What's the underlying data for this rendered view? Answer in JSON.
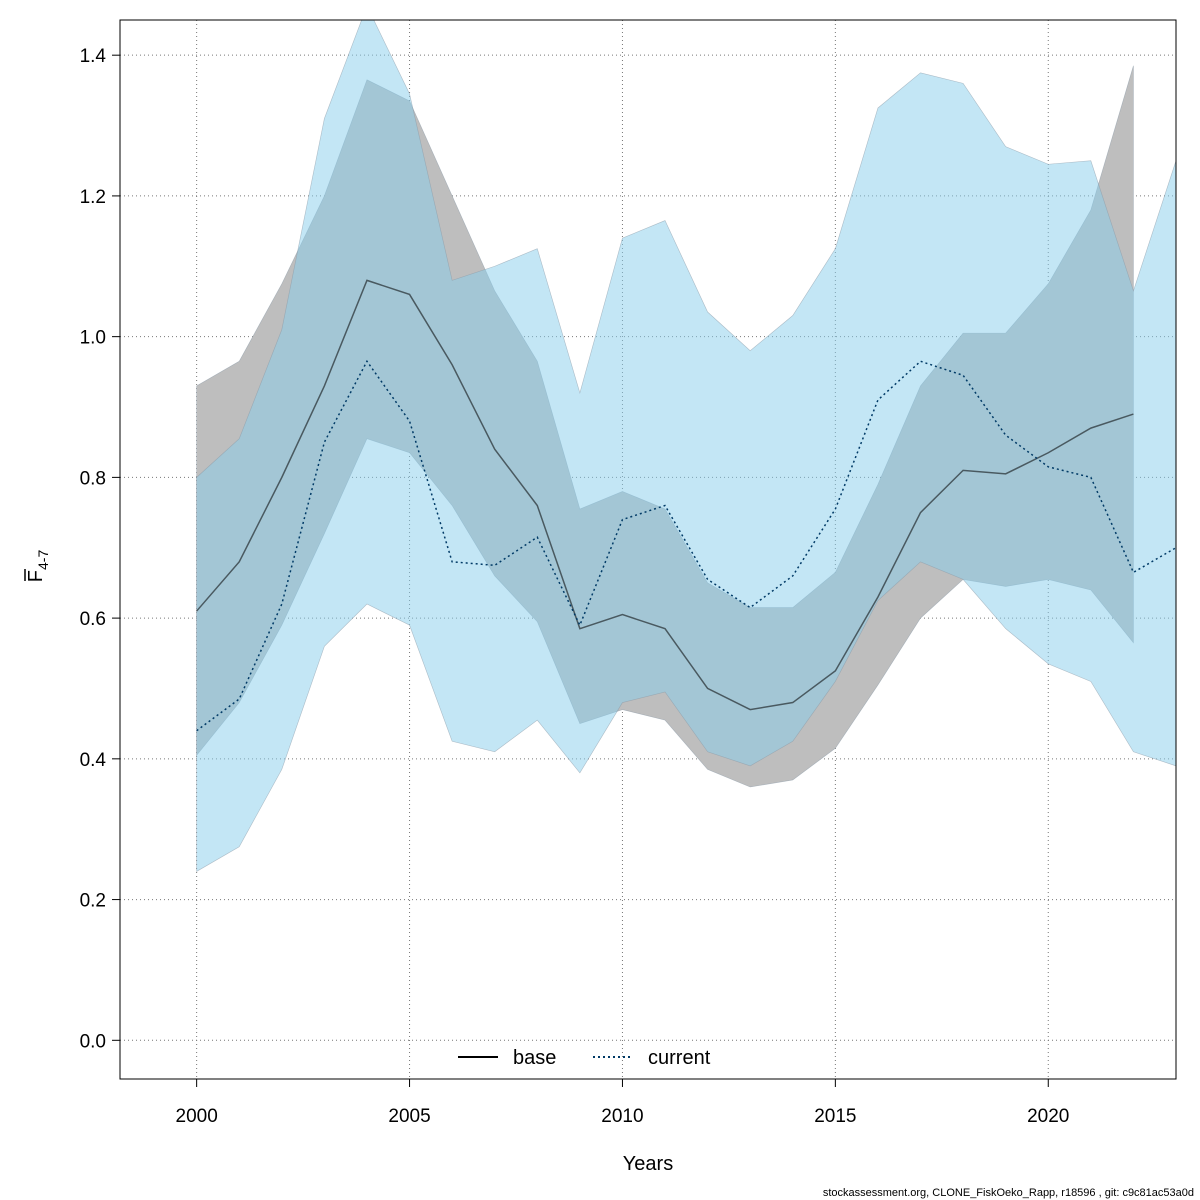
{
  "chart_data": {
    "type": "line",
    "xlabel": "Years",
    "ylabel_main": "F",
    "ylabel_sub": "4-7",
    "xlim": [
      1998.2,
      2023
    ],
    "ylim": [
      -0.055,
      1.45
    ],
    "xticks": [
      2000,
      2005,
      2010,
      2015,
      2020
    ],
    "yticks": [
      0.0,
      0.2,
      0.4,
      0.6,
      0.8,
      1.0,
      1.2,
      1.4
    ],
    "ytick_labels": [
      "0.0",
      "0.2",
      "0.4",
      "0.6",
      "0.8",
      "1.0",
      "1.2",
      "1.4"
    ],
    "grid": true,
    "legend_position": "bottom-center",
    "series": [
      {
        "name": "base",
        "line_style": "solid",
        "line_color": "#000000",
        "band_color": "#bebebe",
        "x": [
          2000,
          2001,
          2002,
          2003,
          2004,
          2005,
          2006,
          2007,
          2008,
          2009,
          2010,
          2011,
          2012,
          2013,
          2014,
          2015,
          2016,
          2017,
          2018,
          2019,
          2020,
          2021,
          2022
        ],
        "values": [
          0.61,
          0.68,
          0.8,
          0.93,
          1.08,
          1.06,
          0.96,
          0.84,
          0.76,
          0.585,
          0.605,
          0.585,
          0.5,
          0.47,
          0.48,
          0.525,
          0.63,
          0.75,
          0.81,
          0.805,
          0.835,
          0.87,
          0.89
        ],
        "lower": [
          0.405,
          0.48,
          0.59,
          0.72,
          0.855,
          0.835,
          0.76,
          0.66,
          0.595,
          0.45,
          0.47,
          0.455,
          0.385,
          0.36,
          0.37,
          0.415,
          0.505,
          0.6,
          0.655,
          0.645,
          0.655,
          0.64,
          0.565
        ],
        "upper": [
          0.93,
          0.965,
          1.075,
          1.2,
          1.365,
          1.335,
          1.2,
          1.065,
          0.965,
          0.755,
          0.78,
          0.755,
          0.65,
          0.615,
          0.615,
          0.665,
          0.79,
          0.93,
          1.005,
          1.005,
          1.075,
          1.18,
          1.385
        ]
      },
      {
        "name": "current",
        "line_style": "dotted",
        "line_color": "#003a66",
        "band_color": "#87ceeb",
        "x": [
          2000,
          2001,
          2002,
          2003,
          2004,
          2005,
          2006,
          2007,
          2008,
          2009,
          2010,
          2011,
          2012,
          2013,
          2014,
          2015,
          2016,
          2017,
          2018,
          2019,
          2020,
          2021,
          2022,
          2023
        ],
        "values": [
          0.44,
          0.485,
          0.62,
          0.85,
          0.965,
          0.88,
          0.68,
          0.675,
          0.715,
          0.59,
          0.74,
          0.76,
          0.655,
          0.615,
          0.66,
          0.755,
          0.91,
          0.965,
          0.945,
          0.86,
          0.815,
          0.8,
          0.665,
          0.7
        ],
        "lower": [
          0.24,
          0.275,
          0.385,
          0.56,
          0.62,
          0.59,
          0.425,
          0.41,
          0.455,
          0.38,
          0.48,
          0.495,
          0.41,
          0.39,
          0.425,
          0.51,
          0.625,
          0.68,
          0.655,
          0.585,
          0.535,
          0.51,
          0.41,
          0.39
        ],
        "upper": [
          0.8,
          0.855,
          1.01,
          1.31,
          1.47,
          1.345,
          1.08,
          1.1,
          1.125,
          0.92,
          1.14,
          1.165,
          1.035,
          0.98,
          1.03,
          1.125,
          1.325,
          1.375,
          1.36,
          1.27,
          1.245,
          1.25,
          1.065,
          1.25
        ]
      }
    ]
  },
  "legend": {
    "items": [
      {
        "label": "base"
      },
      {
        "label": "current"
      }
    ]
  },
  "footer": {
    "text": "stockassessment.org, CLONE_FiskOeko_Rapp, r18596 , git: c9c81ac53a0d"
  }
}
